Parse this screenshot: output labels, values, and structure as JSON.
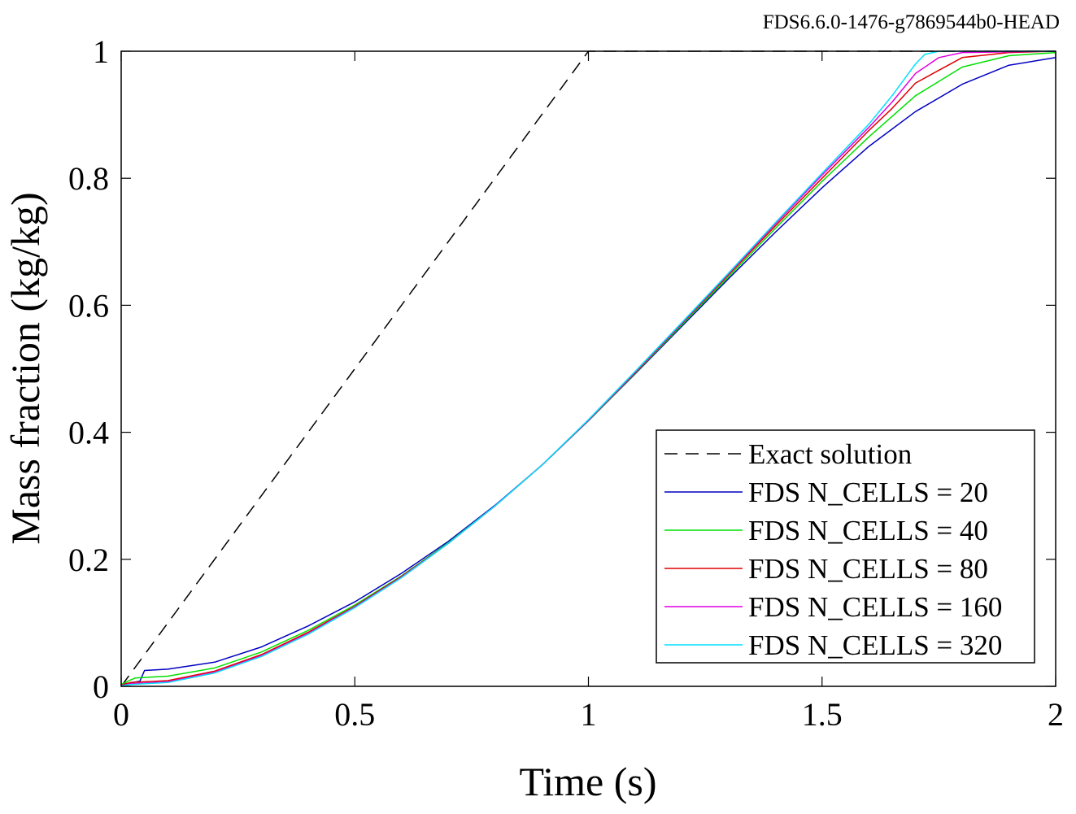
{
  "version_label": "FDS6.6.0-1476-g7869544b0-HEAD",
  "chart_data": {
    "type": "line",
    "title": "",
    "xlabel": "Time (s)",
    "ylabel": "Mass fraction (kg/kg)",
    "xlim": [
      0,
      2
    ],
    "ylim": [
      0,
      1
    ],
    "xticks": [
      0,
      0.5,
      1,
      1.5,
      2
    ],
    "xtick_labels": [
      "0",
      "0.5",
      "1",
      "1.5",
      "2"
    ],
    "yticks": [
      0,
      0.2,
      0.4,
      0.6,
      0.8,
      1
    ],
    "ytick_labels": [
      "0",
      "0.2",
      "0.4",
      "0.6",
      "0.8",
      "1"
    ],
    "grid": false,
    "legend_position": "bottom-right",
    "series": [
      {
        "name": "Exact solution",
        "color": "#000000",
        "dash": true,
        "x": [
          0,
          1,
          1.2,
          1.4,
          1.6,
          1.8,
          2
        ],
        "y": [
          0,
          1,
          1,
          1,
          1,
          1,
          1
        ]
      },
      {
        "name": "FDS N_CELLS = 20",
        "color": "#0000c0",
        "dash": false,
        "x": [
          0,
          0.04,
          0.05,
          0.1,
          0.2,
          0.3,
          0.4,
          0.5,
          0.6,
          0.7,
          0.8,
          0.9,
          1.0,
          1.1,
          1.2,
          1.3,
          1.4,
          1.5,
          1.6,
          1.7,
          1.8,
          1.9,
          2.0
        ],
        "y": [
          0.003,
          0.008,
          0.025,
          0.027,
          0.038,
          0.062,
          0.095,
          0.133,
          0.178,
          0.228,
          0.285,
          0.348,
          0.418,
          0.492,
          0.567,
          0.642,
          0.715,
          0.785,
          0.85,
          0.905,
          0.948,
          0.978,
          0.99
        ]
      },
      {
        "name": "FDS N_CELLS = 40",
        "color": "#00e000",
        "dash": false,
        "x": [
          0,
          0.02,
          0.03,
          0.1,
          0.2,
          0.3,
          0.4,
          0.5,
          0.6,
          0.7,
          0.8,
          0.9,
          1.0,
          1.1,
          1.2,
          1.3,
          1.4,
          1.5,
          1.6,
          1.7,
          1.8,
          1.9,
          2.0
        ],
        "y": [
          0.003,
          0.01,
          0.013,
          0.016,
          0.029,
          0.054,
          0.088,
          0.128,
          0.174,
          0.226,
          0.284,
          0.348,
          0.418,
          0.493,
          0.569,
          0.645,
          0.721,
          0.795,
          0.865,
          0.93,
          0.975,
          0.993,
          0.998
        ]
      },
      {
        "name": "FDS N_CELLS = 80",
        "color": "#e00000",
        "dash": false,
        "x": [
          0,
          0.02,
          0.1,
          0.2,
          0.3,
          0.4,
          0.5,
          0.6,
          0.7,
          0.8,
          0.9,
          1.0,
          1.1,
          1.2,
          1.3,
          1.4,
          1.5,
          1.6,
          1.65,
          1.7,
          1.8,
          1.9,
          2.0
        ],
        "y": [
          0.002,
          0.006,
          0.009,
          0.024,
          0.05,
          0.085,
          0.126,
          0.173,
          0.225,
          0.284,
          0.348,
          0.419,
          0.494,
          0.571,
          0.648,
          0.725,
          0.8,
          0.875,
          0.91,
          0.95,
          0.99,
          0.998,
          1.0
        ]
      },
      {
        "name": "FDS N_CELLS = 160",
        "color": "#e000e0",
        "dash": false,
        "x": [
          0,
          0.02,
          0.1,
          0.2,
          0.3,
          0.4,
          0.5,
          0.6,
          0.7,
          0.8,
          0.9,
          1.0,
          1.1,
          1.2,
          1.3,
          1.4,
          1.5,
          1.6,
          1.65,
          1.7,
          1.75,
          1.8,
          2.0
        ],
        "y": [
          0.001,
          0.004,
          0.007,
          0.022,
          0.048,
          0.083,
          0.125,
          0.172,
          0.225,
          0.284,
          0.348,
          0.419,
          0.495,
          0.572,
          0.65,
          0.728,
          0.805,
          0.88,
          0.92,
          0.965,
          0.99,
          0.998,
          1.0
        ]
      },
      {
        "name": "FDS N_CELLS = 320",
        "color": "#00e0ff",
        "dash": false,
        "x": [
          0,
          0.02,
          0.1,
          0.2,
          0.3,
          0.4,
          0.5,
          0.6,
          0.7,
          0.8,
          0.9,
          1.0,
          1.1,
          1.2,
          1.3,
          1.4,
          1.5,
          1.6,
          1.65,
          1.7,
          1.72,
          1.75,
          2.0
        ],
        "y": [
          0.001,
          0.003,
          0.006,
          0.021,
          0.047,
          0.082,
          0.124,
          0.171,
          0.225,
          0.284,
          0.348,
          0.42,
          0.496,
          0.573,
          0.651,
          0.73,
          0.808,
          0.885,
          0.93,
          0.98,
          0.995,
          1.0,
          1.0
        ]
      }
    ]
  }
}
